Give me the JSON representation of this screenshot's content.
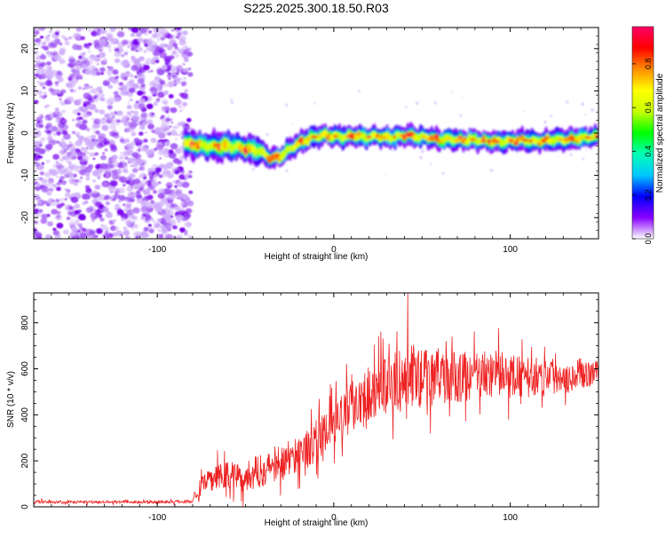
{
  "title": "S225.2025.300.18.50.R03",
  "chart_data": [
    {
      "type": "heatmap",
      "title": "S225.2025.300.18.50.R03",
      "xlabel": "Height of straight line (km)",
      "ylabel": "Frequency (Hz)",
      "xlim": [
        -170,
        150
      ],
      "ylim": [
        -25,
        25
      ],
      "xticks": [
        -100,
        0,
        100
      ],
      "yticks": [
        -20,
        -10,
        0,
        10,
        20
      ],
      "noise_region_x": [
        -170,
        -84
      ],
      "ridge": {
        "x": [
          -84,
          -78,
          -72,
          -66,
          -60,
          -54,
          -48,
          -42,
          -36,
          -30,
          -24,
          -18,
          -12,
          -6,
          0,
          6,
          12,
          18,
          24,
          30,
          36,
          42,
          48,
          54,
          60,
          66,
          72,
          78,
          84,
          90,
          96,
          102,
          108,
          114,
          120,
          126,
          132,
          138,
          144,
          150
        ],
        "frequency": [
          -2.5,
          -2.8,
          -3.0,
          -3.2,
          -3.0,
          -3.3,
          -3.8,
          -4.2,
          -6.0,
          -5.5,
          -3.5,
          -2.0,
          -1.0,
          -0.5,
          -0.7,
          -0.9,
          -0.6,
          -1.0,
          -0.7,
          -1.1,
          -0.8,
          -0.5,
          -0.9,
          -1.0,
          -1.6,
          -1.3,
          -1.7,
          -1.5,
          -1.8,
          -2.0,
          -2.0,
          -1.8,
          -1.6,
          -2.0,
          -1.8,
          -1.5,
          -1.6,
          -1.2,
          -1.0,
          -0.9
        ]
      },
      "colorbar": {
        "label": "Normalized spectral amplitude",
        "range": [
          0,
          0.97
        ],
        "ticks": [
          0.0,
          0.2,
          0.4,
          0.6,
          0.8
        ],
        "tick_labels": [
          "0.0",
          "0.2",
          "0.4",
          "0.6",
          "0.8"
        ],
        "colormap": [
          "#ffffff",
          "#8800ff",
          "#0000ff",
          "#00c8ff",
          "#00ffb4",
          "#00ff00",
          "#c8ff00",
          "#ffff00",
          "#ff8c00",
          "#ff0000",
          "#ff0066"
        ]
      }
    },
    {
      "type": "line",
      "xlabel": "Height of straight line (km)",
      "ylabel": "SNR (10 * v/v)",
      "xlim": [
        -170,
        150
      ],
      "ylim": [
        0,
        930
      ],
      "xticks": [
        -100,
        0,
        100
      ],
      "yticks": [
        0,
        200,
        400,
        600,
        800
      ],
      "color": "#ee2222",
      "series": [
        {
          "name": "SNR",
          "x": [
            -170,
            -150,
            -130,
            -110,
            -90,
            -80,
            -76,
            -70,
            -60,
            -50,
            -40,
            -30,
            -20,
            -10,
            -5,
            0,
            5,
            10,
            15,
            20,
            30,
            40,
            45,
            50,
            60,
            70,
            80,
            90,
            100,
            110,
            120,
            130,
            140,
            150
          ],
          "mean": [
            22,
            20,
            22,
            20,
            22,
            25,
            80,
            120,
            140,
            130,
            160,
            190,
            230,
            280,
            320,
            360,
            390,
            440,
            480,
            500,
            530,
            550,
            570,
            560,
            570,
            560,
            570,
            580,
            570,
            560,
            575,
            570,
            580,
            580
          ],
          "spread": [
            12,
            10,
            10,
            10,
            12,
            12,
            60,
            90,
            110,
            110,
            120,
            130,
            140,
            150,
            150,
            160,
            170,
            190,
            200,
            200,
            210,
            230,
            250,
            220,
            200,
            190,
            180,
            170,
            160,
            150,
            140,
            130,
            110,
            90
          ]
        }
      ],
      "peak": {
        "x": 42,
        "y": 930
      }
    }
  ]
}
